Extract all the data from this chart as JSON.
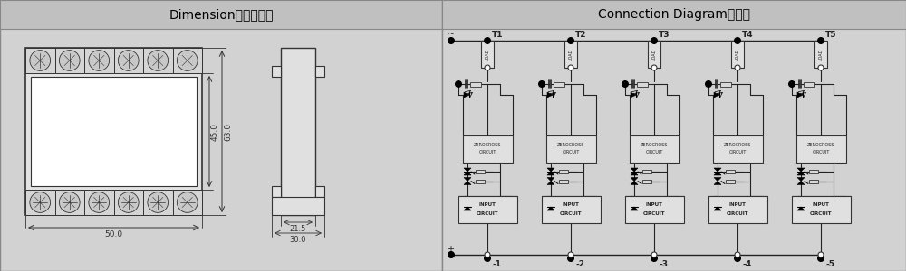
{
  "bg_color": "#c8c8c8",
  "title_left": "Dimension外型尺寸图",
  "title_right": "Connection Diagram接线图",
  "dim_50": "50.0",
  "dim_45": "45.0",
  "dim_63": "63.0",
  "dim_215": "21.5",
  "dim_30": "30.0",
  "channels": [
    "T1",
    "T2",
    "T3",
    "T4",
    "T5"
  ],
  "input_labels": [
    "-1",
    "-2",
    "-3",
    "-4",
    "-5"
  ],
  "lc": "#333333",
  "wc": "#ffffff",
  "gc": "#d8d8d8",
  "panel_divider": 488
}
